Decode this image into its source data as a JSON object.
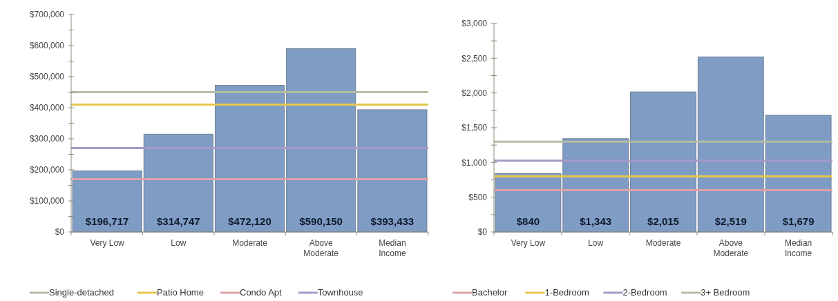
{
  "chart_data": [
    {
      "type": "bar",
      "categories": [
        "Very Low",
        "Low",
        "Moderate",
        "Above Moderate",
        "Median Income"
      ],
      "values": [
        196717,
        314747,
        472120,
        590150,
        393433
      ],
      "value_labels": [
        "$196,717",
        "$314,747",
        "$472,120",
        "$590,150",
        "$393,433"
      ],
      "color": "#7f9cc4",
      "ylim": [
        0,
        700000
      ],
      "yticks": [
        {
          "value": 0,
          "label": "$0"
        },
        {
          "value": 50000,
          "label": null
        },
        {
          "value": 100000,
          "label": "$100,000"
        },
        {
          "value": 150000,
          "label": null
        },
        {
          "value": 200000,
          "label": "$200,000"
        },
        {
          "value": 250000,
          "label": null
        },
        {
          "value": 300000,
          "label": "$300,000"
        },
        {
          "value": 350000,
          "label": null
        },
        {
          "value": 400000,
          "label": "$400,000"
        },
        {
          "value": 450000,
          "label": null
        },
        {
          "value": 500000,
          "label": "$500,000"
        },
        {
          "value": 550000,
          "label": null
        },
        {
          "value": 600000,
          "label": "$600,000"
        },
        {
          "value": 650000,
          "label": null
        },
        {
          "value": 700000,
          "label": "$700,000"
        }
      ],
      "ref_lines": [
        {
          "axis": "y",
          "value": 450000,
          "label": "Single-detached",
          "color": "#b4bda3"
        },
        {
          "axis": "y",
          "value": 410000,
          "label": "Patio Home",
          "color": "#e6c84a"
        },
        {
          "axis": "y",
          "value": 170000,
          "label": "Condo Apt",
          "color": "#e0a0a8"
        },
        {
          "axis": "y",
          "value": 270000,
          "label": "Townhouse",
          "color": "#a898c8"
        }
      ],
      "legend": "bottom",
      "grid": false
    },
    {
      "type": "bar",
      "categories": [
        "Very Low",
        "Low",
        "Moderate",
        "Above Moderate",
        "Median Income"
      ],
      "values": [
        840,
        1343,
        2015,
        2519,
        1679
      ],
      "value_labels": [
        "$840",
        "$1,343",
        "$2,015",
        "$2,519",
        "$1,679"
      ],
      "color": "#7f9cc4",
      "ylim": [
        0,
        3000
      ],
      "yticks": [
        {
          "value": 0,
          "label": "$0"
        },
        {
          "value": 250,
          "label": null
        },
        {
          "value": 500,
          "label": "$500"
        },
        {
          "value": 750,
          "label": null
        },
        {
          "value": 1000,
          "label": "$1,000"
        },
        {
          "value": 1250,
          "label": null
        },
        {
          "value": 1500,
          "label": "$1,500"
        },
        {
          "value": 1750,
          "label": null
        },
        {
          "value": 2000,
          "label": "$2,000"
        },
        {
          "value": 2250,
          "label": null
        },
        {
          "value": 2500,
          "label": "$2,500"
        },
        {
          "value": 2750,
          "label": null
        },
        {
          "value": 3000,
          "label": "$3,000"
        }
      ],
      "ref_lines": [
        {
          "axis": "y",
          "value": 600,
          "label": "Bachelor",
          "color": "#e0a0a8"
        },
        {
          "axis": "y",
          "value": 800,
          "label": "1-Bedroom",
          "color": "#e6c84a"
        },
        {
          "axis": "y",
          "value": 1025,
          "label": "2-Bedroom",
          "color": "#a898c8"
        },
        {
          "axis": "y",
          "value": 1300,
          "label": "3+ Bedroom",
          "color": "#b4bda3"
        }
      ],
      "legend": "bottom",
      "grid": false
    }
  ]
}
